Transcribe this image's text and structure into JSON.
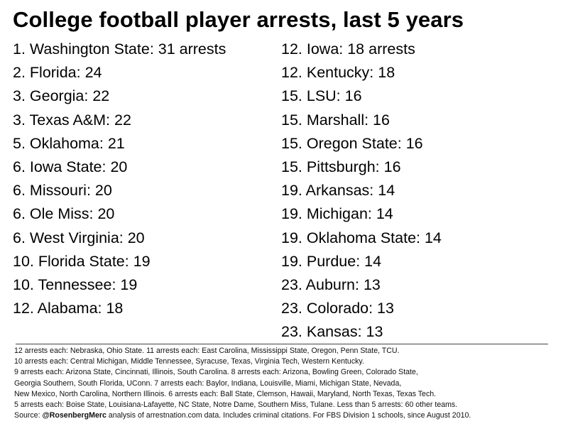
{
  "title": "College football player arrests, last 5 years",
  "left_column": [
    "1. Washington State: 31 arrests",
    "2. Florida: 24",
    "3. Georgia: 22",
    "3. Texas A&M: 22",
    "5. Oklahoma: 21",
    "6. Iowa State: 20",
    "6. Missouri: 20",
    "6. Ole Miss: 20",
    "6. West Virginia: 20",
    "10. Florida State: 19",
    "10. Tennessee: 19",
    "12. Alabama: 18"
  ],
  "right_column": [
    "12. Iowa: 18 arrests",
    "12. Kentucky: 18",
    "15. LSU: 16",
    "15. Marshall: 16",
    "15. Oregon State: 16",
    "15. Pittsburgh: 16",
    "19. Arkansas: 14",
    "19. Michigan: 14",
    "19. Oklahoma State: 14",
    "19. Purdue: 14",
    "23. Auburn: 13",
    "23. Colorado: 13",
    "23. Kansas: 13"
  ],
  "notes": [
    "12 arrests each: Nebraska, Ohio State. 11 arrests each: East Carolina, Mississippi State, Oregon, Penn State, TCU.",
    "10 arrests each: Central Michigan, Middle Tennessee, Syracuse, Texas, Virginia Tech, Western Kentucky.",
    "9 arrests each: Arizona State, Cincinnati, Illinois, South Carolina. 8 arrests each: Arizona, Bowling Green, Colorado State,",
    "Georgia Southern, South Florida, UConn. 7 arrests each: Baylor, Indiana, Louisville, Miami, Michigan State, Nevada,",
    "New Mexico, North Carolina, Northern Illinois. 6 arrests each: Ball State, Clemson, Hawaii, Maryland, North Texas, Texas Tech.",
    "5 arrests each: Boise State, Louisiana-Lafayette, NC State, Notre Dame, Southern Miss, Tulane. Less than 5 arrests: 60 other teams."
  ],
  "source": {
    "prefix": "Source: ",
    "handle": "@RosenbergMerc",
    "suffix": " analysis of arrestnation.com data. Includes criminal citations. For FBS Division 1 schools, since August 2010."
  }
}
